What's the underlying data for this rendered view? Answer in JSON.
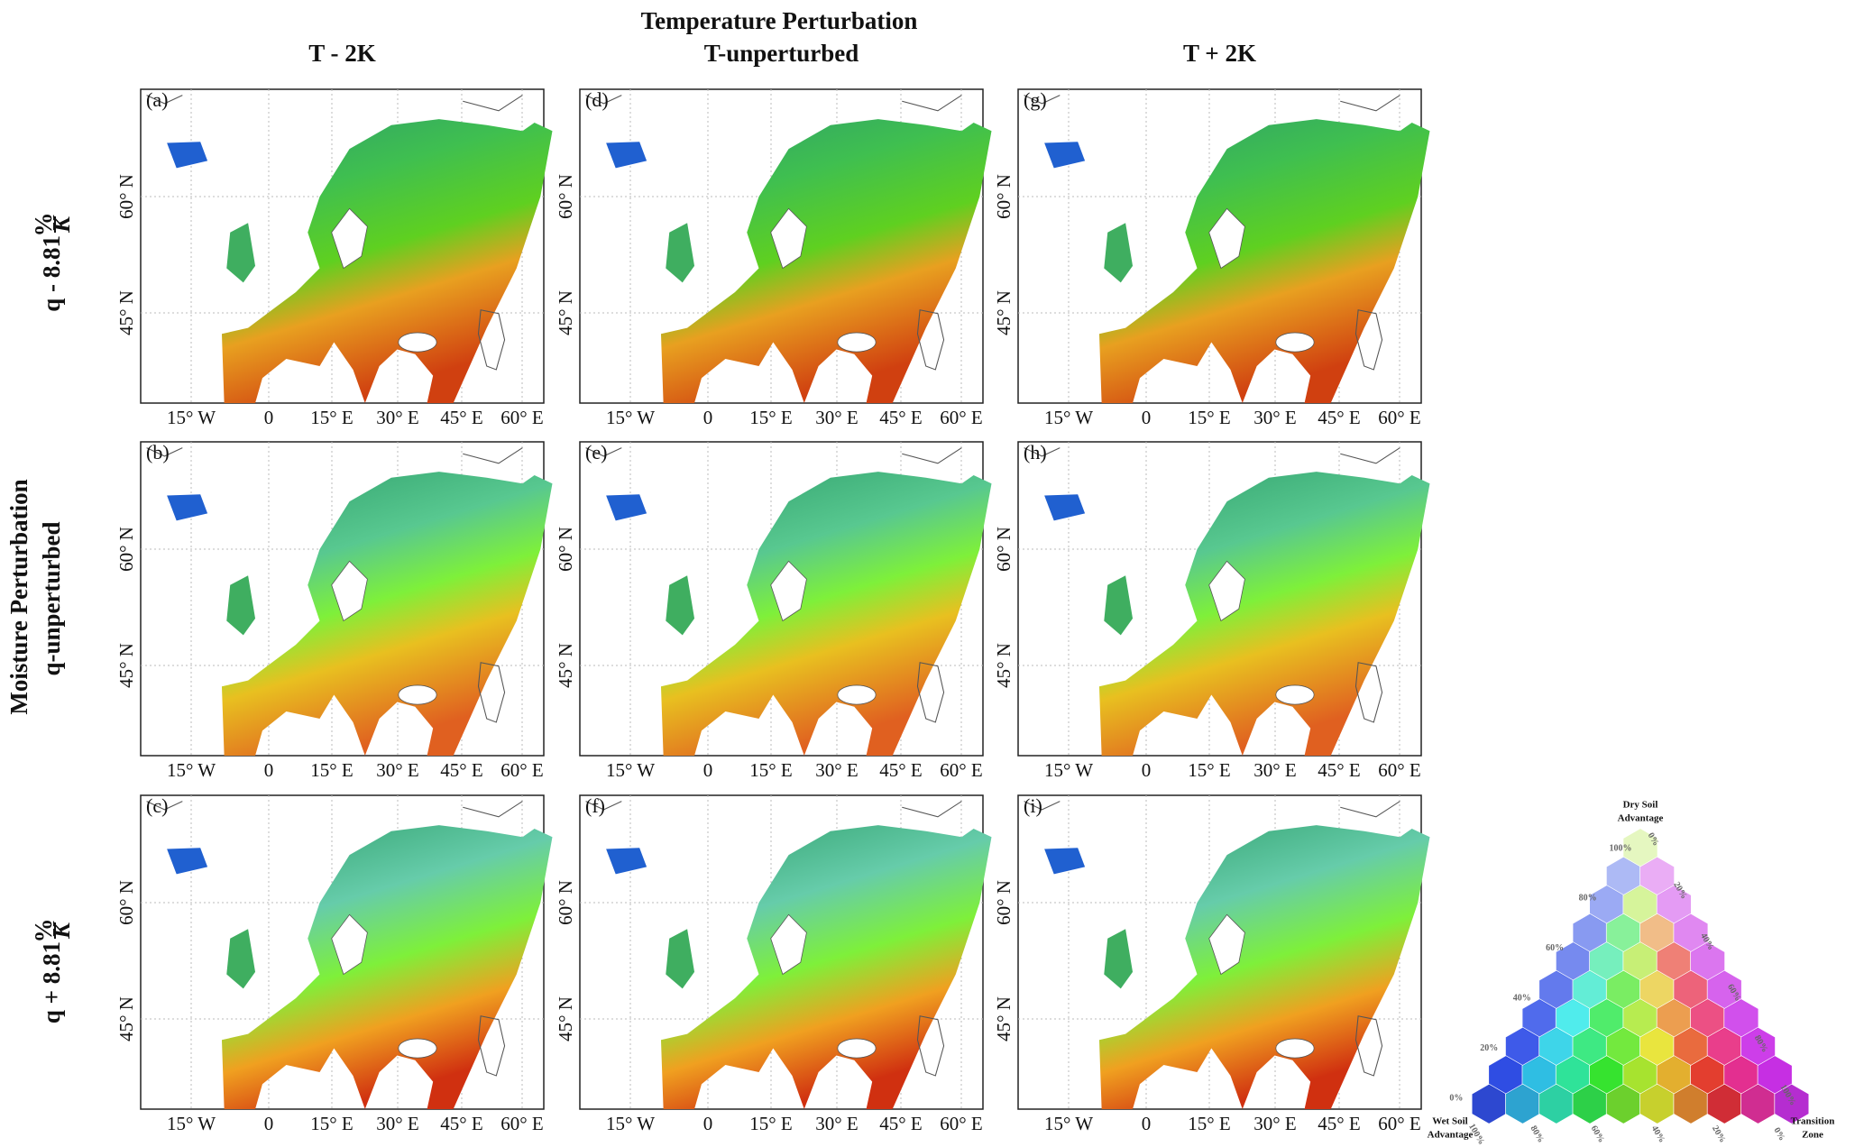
{
  "column_header": {
    "title": "Temperature Perturbation",
    "columns": [
      "T - 2K",
      "T-unperturbed",
      "T + 2K"
    ]
  },
  "row_header": {
    "title": "Moisture Perturbation",
    "rows": [
      {
        "text": "q - 8.81",
        "numerator": "%",
        "denominator": "K"
      },
      {
        "text": "q-unperturbed"
      },
      {
        "text": "q + 8.81",
        "numerator": "%",
        "denominator": "K"
      }
    ]
  },
  "panels": [
    [
      "(a)",
      "(d)",
      "(g)"
    ],
    [
      "(b)",
      "(e)",
      "(h)"
    ],
    [
      "(c)",
      "(f)",
      "(i)"
    ]
  ],
  "axes": {
    "x_labels": [
      "15° W",
      "0",
      "15° E",
      "30° E",
      "45° E",
      "60° E"
    ],
    "y_labels": [
      "60° N",
      "45° N"
    ]
  },
  "legend": {
    "top": [
      "Dry Soil",
      "Advantage"
    ],
    "left": [
      "Wet Soil",
      "Advantage"
    ],
    "right": [
      "Transition",
      "Zone"
    ],
    "left_ticks": [
      "100%",
      "80%",
      "60%",
      "40%",
      "20%",
      "0%"
    ],
    "right_ticks": [
      "0%",
      "20%",
      "40%",
      "60%",
      "80%",
      "100%"
    ],
    "bottom_ticks": [
      "100%",
      "80%",
      "60%",
      "40%",
      "20%",
      "0%"
    ]
  }
}
